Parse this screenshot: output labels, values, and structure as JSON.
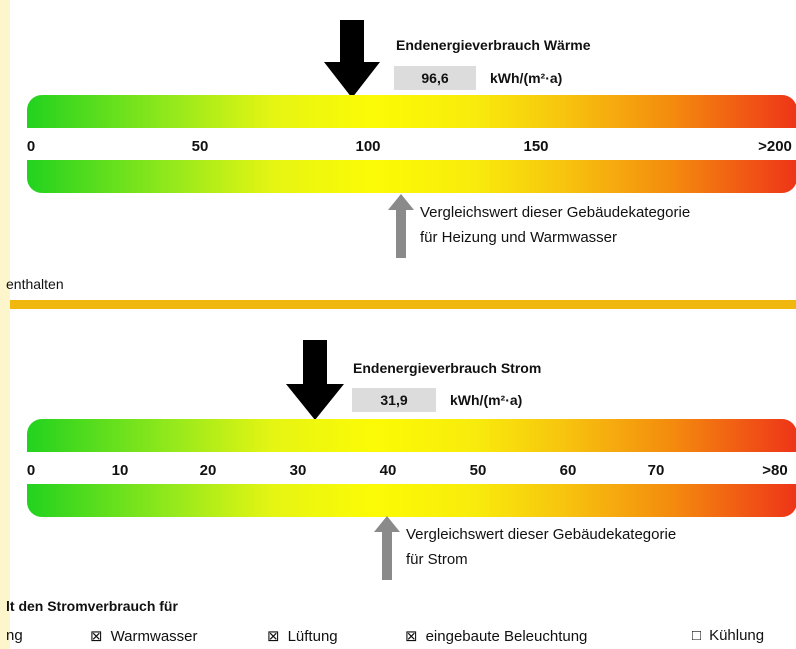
{
  "heat": {
    "title": "Endenergieverbrauch Wärme",
    "value": "96,6",
    "unit": "kWh/(m²·a)",
    "value_num": 96.6,
    "max": 200,
    "ticks": [
      "0",
      "50",
      "100",
      "150",
      ">200"
    ],
    "comparison_line1": "Vergleichswert dieser Gebäudekategorie",
    "comparison_line2": "für Heizung und Warmwasser",
    "note": "enthalten"
  },
  "power": {
    "title": "Endenergieverbrauch Strom",
    "value": "31,9",
    "unit": "kWh/(m²·a)",
    "value_num": 31.9,
    "max": 80,
    "ticks": [
      "0",
      "10",
      "20",
      "30",
      "40",
      "50",
      "60",
      "70",
      ">80"
    ],
    "comparison_line1": "Vergleichswert dieser Gebäudekategorie",
    "comparison_line2": "für Strom"
  },
  "usage": {
    "heading": "lt den Stromverbrauch für",
    "items": [
      {
        "label": "ng",
        "checked": null
      },
      {
        "label": "Warmwasser",
        "checked": true
      },
      {
        "label": "Lüftung",
        "checked": true
      },
      {
        "label": "eingebaute Beleuchtung",
        "checked": true
      },
      {
        "label": "Kühlung",
        "checked": false
      }
    ]
  },
  "colors": {
    "green": "#22d21f",
    "yellow": "#fcfb05",
    "red": "#ee3418",
    "divider": "#f0b70e"
  }
}
